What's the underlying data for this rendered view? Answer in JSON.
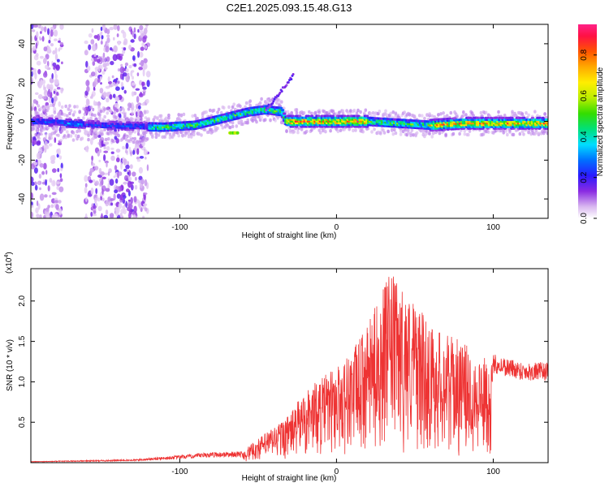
{
  "title": "C2E1.2025.093.15.48.G13",
  "colors": {
    "snr_line": "#ee3333",
    "axis": "#000000",
    "background": "#ffffff"
  },
  "chart_data": [
    {
      "type": "heatmap",
      "xlabel": "Height of straight line (km)",
      "ylabel": "Frequency (Hz)",
      "xlim": [
        -195,
        135
      ],
      "ylim": [
        -50,
        50
      ],
      "xticks": [
        -100,
        0,
        100
      ],
      "xtick_labels": [
        "-100",
        "0",
        "100"
      ],
      "yticks": [
        -40,
        -20,
        0,
        20,
        40
      ],
      "ytick_labels": [
        "-40",
        "-20",
        "0",
        "20",
        "40"
      ],
      "colorbar": {
        "label": "Normalized spectral amplitude",
        "range": [
          0,
          0.95
        ],
        "ticks": [
          0.0,
          0.2,
          0.4,
          0.6,
          0.8
        ],
        "tick_labels": [
          "0.0",
          "0.2",
          "0.4",
          "0.6",
          "0.8"
        ]
      },
      "band_centerline": {
        "x": [
          -190,
          -150,
          -110,
          -90,
          -70,
          -55,
          -45,
          -35,
          -32,
          -20,
          0,
          20,
          40,
          60,
          80,
          100,
          120,
          135
        ],
        "y": [
          0,
          -2,
          -3,
          -2,
          2,
          5,
          6,
          5,
          0,
          0,
          0,
          0,
          -1,
          -2,
          -1,
          -1,
          -1,
          -1
        ]
      },
      "noise_columns_x": [
        [
          -195,
          -175
        ],
        [
          -160,
          -120
        ]
      ],
      "grid": false
    },
    {
      "type": "line",
      "xlabel": "Height of straight line (km)",
      "ylabel": "SNR (10 * v/v)",
      "y_multiplier_label": "(x10",
      "y_multiplier_exp": "4",
      "y_multiplier_close": ")",
      "xlim": [
        -195,
        135
      ],
      "ylim": [
        0,
        24000
      ],
      "xticks": [
        -100,
        0,
        100
      ],
      "xtick_labels": [
        "-100",
        "0",
        "100"
      ],
      "yticks": [
        5000,
        10000,
        15000,
        20000
      ],
      "ytick_labels": [
        "0.5",
        "1.0",
        "1.5",
        "2.0"
      ],
      "envelope": {
        "x": [
          -195,
          -130,
          -100,
          -80,
          -60,
          -50,
          -40,
          -30,
          -20,
          -10,
          0,
          10,
          20,
          30,
          35,
          40,
          50,
          60,
          70,
          80,
          90,
          100,
          110,
          120,
          135
        ],
        "y": [
          150,
          400,
          900,
          1300,
          1400,
          3000,
          4500,
          6000,
          9000,
          10500,
          12000,
          14000,
          17000,
          22000,
          23500,
          22000,
          20000,
          17000,
          16000,
          15000,
          13500,
          12500,
          12000,
          11500,
          11500
        ]
      },
      "grid": false
    }
  ]
}
